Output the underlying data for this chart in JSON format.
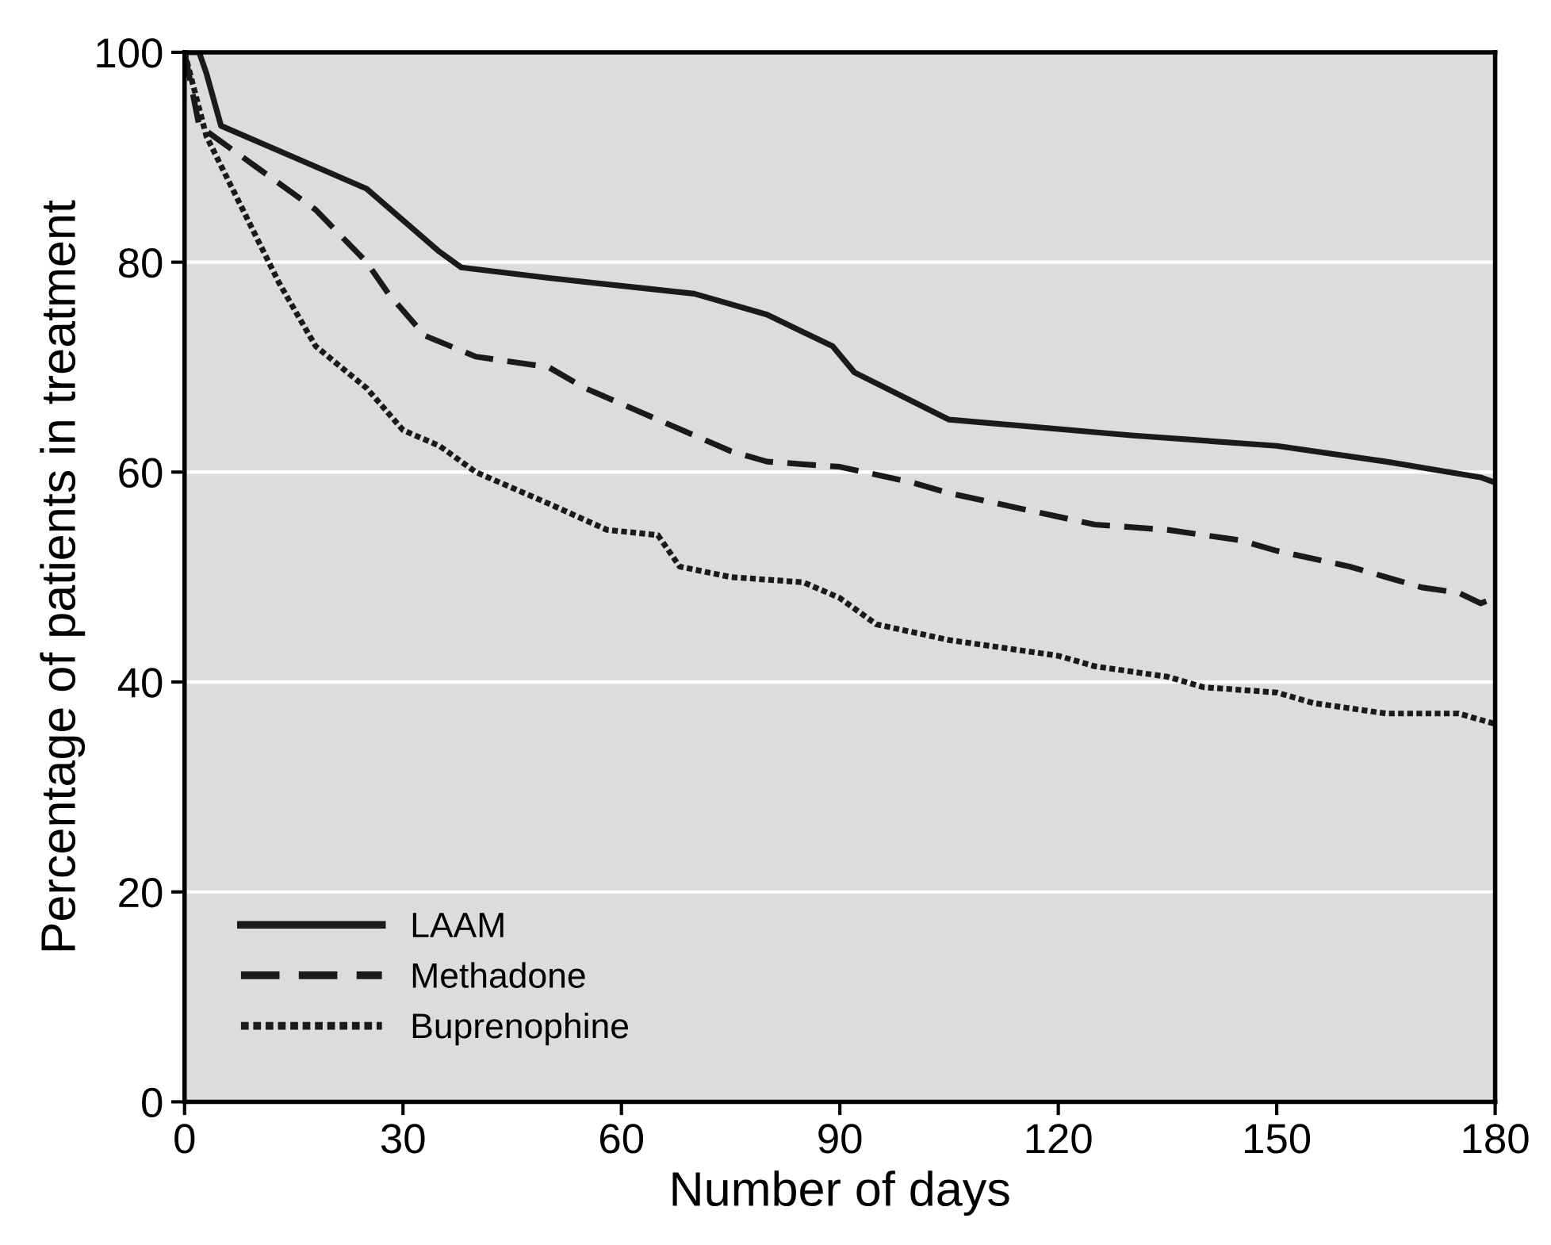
{
  "chart_data": {
    "type": "line",
    "xlabel": "Number of days",
    "ylabel": "Percentage of patients in treatment",
    "xlim": [
      0,
      180
    ],
    "ylim": [
      0,
      100
    ],
    "xticks": [
      0,
      30,
      60,
      90,
      120,
      150,
      180
    ],
    "yticks": [
      0,
      20,
      40,
      60,
      80,
      100
    ],
    "grid": "y",
    "legend": "bottom left",
    "marker": "none",
    "series": [
      {
        "name": "LAAM",
        "color": "#1a1a1a",
        "line_style": "solid",
        "x": [
          0,
          2,
          3,
          5,
          15,
          25,
          30,
          35,
          38,
          50,
          70,
          80,
          89,
          92,
          105,
          130,
          150,
          165,
          178,
          180
        ],
        "values": [
          100,
          100,
          98,
          93,
          90,
          87,
          84,
          81,
          79.5,
          78.5,
          77,
          75,
          72,
          69.5,
          65,
          63.5,
          62.5,
          61,
          59.5,
          59
        ]
      },
      {
        "name": "Methadone",
        "color": "#1a1a1a",
        "line_style": "dashed",
        "x": [
          0,
          2,
          10,
          18,
          25,
          28,
          33,
          40,
          50,
          55,
          65,
          75,
          80,
          90,
          100,
          105,
          115,
          125,
          135,
          145,
          150,
          160,
          165,
          170,
          175,
          178,
          180
        ],
        "values": [
          100,
          93,
          89,
          85,
          80,
          77,
          73,
          71,
          70,
          68,
          65,
          62,
          61,
          60.5,
          59,
          58,
          56.5,
          55,
          54.5,
          53.5,
          52.5,
          51,
          50,
          49,
          48.5,
          47.5,
          48
        ]
      },
      {
        "name": "Buprenophine",
        "color": "#1a1a1a",
        "line_style": "dotted",
        "x": [
          0,
          3,
          8,
          13,
          18,
          25,
          30,
          35,
          40,
          50,
          58,
          65,
          68,
          75,
          85,
          90,
          95,
          105,
          120,
          125,
          135,
          140,
          150,
          155,
          165,
          175,
          180
        ],
        "values": [
          100,
          92,
          85,
          78,
          72,
          68,
          64,
          62.5,
          60,
          57,
          54.5,
          54,
          51,
          50,
          49.5,
          48,
          45.5,
          44,
          42.5,
          41.5,
          40.5,
          39.5,
          39,
          38,
          37,
          37,
          36
        ]
      }
    ]
  }
}
